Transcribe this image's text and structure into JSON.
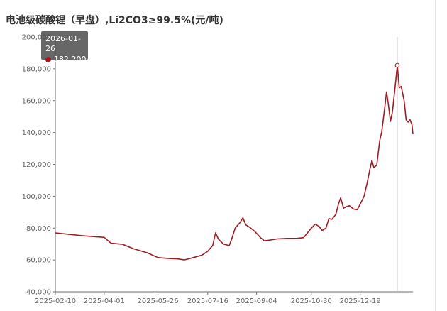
{
  "chart_data": {
    "type": "line",
    "title": "电池级碳酸锂（早盘）,Li2CO3≥99.5%(元/吨)",
    "xlabel": "",
    "ylabel": "",
    "ylim": [
      40000,
      200000
    ],
    "y_ticks": [
      40000,
      60000,
      80000,
      100000,
      120000,
      140000,
      160000,
      180000,
      200000
    ],
    "y_tick_labels": [
      "40,000",
      "60,000",
      "80,000",
      "100,000",
      "120,000",
      "140,000",
      "160,000",
      "180,000",
      "200,000"
    ],
    "x_tick_labels": [
      "2025-02-10",
      "2025-04-01",
      "2025-05-26",
      "2025-07-16",
      "2025-09-04",
      "2025-10-30",
      "2025-12-19"
    ],
    "grid": false,
    "color": "#a01c22",
    "tooltip": {
      "date": "2026-01-26",
      "value": 182200,
      "value_label": "182,200"
    },
    "series": [
      {
        "points": [
          [
            "2025-02-10",
            77000
          ],
          [
            "2025-02-25",
            76000
          ],
          [
            "2025-03-10",
            75200
          ],
          [
            "2025-03-20",
            74700
          ],
          [
            "2025-04-01",
            74200
          ],
          [
            "2025-04-08",
            70500
          ],
          [
            "2025-04-20",
            69800
          ],
          [
            "2025-05-01",
            67000
          ],
          [
            "2025-05-15",
            64500
          ],
          [
            "2025-05-26",
            61500
          ],
          [
            "2025-06-05",
            61000
          ],
          [
            "2025-06-15",
            60700
          ],
          [
            "2025-06-22",
            60000
          ],
          [
            "2025-07-01",
            61500
          ],
          [
            "2025-07-10",
            63000
          ],
          [
            "2025-07-16",
            65500
          ],
          [
            "2025-07-21",
            69000
          ],
          [
            "2025-07-24",
            77000
          ],
          [
            "2025-07-27",
            73000
          ],
          [
            "2025-08-01",
            70000
          ],
          [
            "2025-08-07",
            69000
          ],
          [
            "2025-08-10",
            74000
          ],
          [
            "2025-08-13",
            80000
          ],
          [
            "2025-08-18",
            83500
          ],
          [
            "2025-08-21",
            86500
          ],
          [
            "2025-08-24",
            82000
          ],
          [
            "2025-08-28",
            80500
          ],
          [
            "2025-09-02",
            78000
          ],
          [
            "2025-09-08",
            74000
          ],
          [
            "2025-09-12",
            72000
          ],
          [
            "2025-09-18",
            72500
          ],
          [
            "2025-09-25",
            73200
          ],
          [
            "2025-10-05",
            73500
          ],
          [
            "2025-10-15",
            73500
          ],
          [
            "2025-10-22",
            74000
          ],
          [
            "2025-10-30",
            80000
          ],
          [
            "2025-11-03",
            82500
          ],
          [
            "2025-11-07",
            81000
          ],
          [
            "2025-11-10",
            78500
          ],
          [
            "2025-11-14",
            80000
          ],
          [
            "2025-11-17",
            86000
          ],
          [
            "2025-11-20",
            85500
          ],
          [
            "2025-11-24",
            88500
          ],
          [
            "2025-11-27",
            95500
          ],
          [
            "2025-11-29",
            99000
          ],
          [
            "2025-12-02",
            92500
          ],
          [
            "2025-12-05",
            93500
          ],
          [
            "2025-12-08",
            94000
          ],
          [
            "2025-12-12",
            92000
          ],
          [
            "2025-12-16",
            91500
          ],
          [
            "2025-12-19",
            95000
          ],
          [
            "2025-12-23",
            100000
          ],
          [
            "2025-12-26",
            108000
          ],
          [
            "2025-12-29",
            117000
          ],
          [
            "2025-12-31",
            122500
          ],
          [
            "2026-01-02",
            118000
          ],
          [
            "2026-01-05",
            119500
          ],
          [
            "2026-01-08",
            135000
          ],
          [
            "2026-01-10",
            140000
          ],
          [
            "2026-01-13",
            155000
          ],
          [
            "2026-01-15",
            165500
          ],
          [
            "2026-01-17",
            157000
          ],
          [
            "2026-01-19",
            147000
          ],
          [
            "2026-01-21",
            153000
          ],
          [
            "2026-01-24",
            170000
          ],
          [
            "2026-01-26",
            182200
          ],
          [
            "2026-01-28",
            168000
          ],
          [
            "2026-01-30",
            169000
          ],
          [
            "2026-02-02",
            160000
          ],
          [
            "2026-02-04",
            148000
          ],
          [
            "2026-02-06",
            146500
          ],
          [
            "2026-02-08",
            148000
          ],
          [
            "2026-02-10",
            145000
          ],
          [
            "2026-02-11",
            139000
          ]
        ]
      }
    ]
  }
}
